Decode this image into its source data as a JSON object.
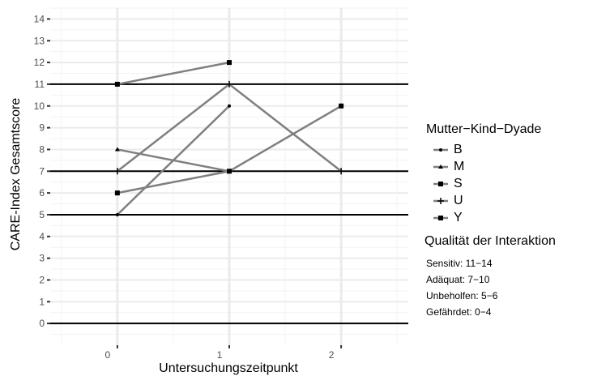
{
  "chart_data": {
    "type": "line",
    "xlabel": "Untersuchungszeitpunkt",
    "ylabel": "CARE-Index Gesamtscore",
    "x_ticks": [
      0,
      1,
      2
    ],
    "y_ticks": [
      0,
      1,
      2,
      3,
      4,
      5,
      6,
      7,
      8,
      9,
      10,
      11,
      12,
      13,
      14
    ],
    "xlim": [
      -0.6,
      2.6
    ],
    "ylim": [
      -1,
      14.5
    ],
    "grid": true,
    "reference_lines": [
      0,
      5,
      7,
      11
    ],
    "legend_position": "right",
    "series": [
      {
        "name": "B",
        "marker": "circle",
        "x": [
          0,
          1
        ],
        "y": [
          5,
          10
        ]
      },
      {
        "name": "M",
        "marker": "triangle",
        "x": [
          0,
          1
        ],
        "y": [
          8,
          7
        ]
      },
      {
        "name": "S",
        "marker": "square",
        "x": [
          0,
          1,
          2
        ],
        "y": [
          6,
          7,
          10
        ]
      },
      {
        "name": "U",
        "marker": "plus",
        "x": [
          0,
          1,
          2
        ],
        "y": [
          7,
          11,
          7
        ]
      },
      {
        "name": "Y",
        "marker": "square",
        "x": [
          0,
          1
        ],
        "y": [
          11,
          12
        ]
      }
    ],
    "legend_title": "Mutter−Kind−Dyade",
    "annotation_title": "Qualität der Interaktion",
    "annotations": [
      "Sensitiv: 11−14",
      "Adäquat: 7−10",
      "Unbeholfen: 5−6",
      "Gefährdet: 0−4"
    ]
  }
}
